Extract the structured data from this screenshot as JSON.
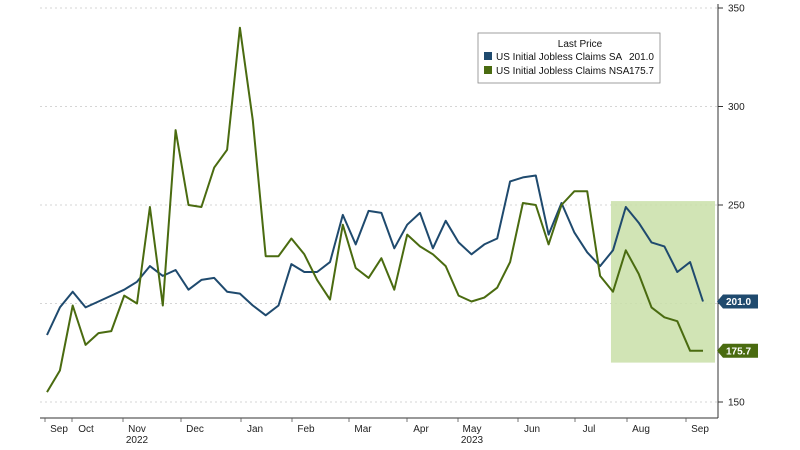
{
  "chart_data": {
    "type": "line",
    "xlabel": "",
    "ylabel": "",
    "ylim": [
      150,
      350
    ],
    "yticks": [
      150,
      200,
      250,
      300,
      350
    ],
    "grid": "horizontal dotted",
    "legend_position": "top-right",
    "legend_title": "Last Price",
    "months": [
      "Sep",
      "Oct",
      "Nov",
      "Dec",
      "Jan",
      "Feb",
      "Mar",
      "Apr",
      "May",
      "Jun",
      "Jul",
      "Aug",
      "Sep"
    ],
    "years": [
      {
        "label": "2022",
        "month_index": 2
      },
      {
        "label": "2023",
        "month_index": 8
      }
    ],
    "series": [
      {
        "name": "US Initial Jobless Claims SA",
        "last_value": "201.0",
        "color": "#1f4a6e",
        "values": [
          184,
          198,
          206,
          198,
          201,
          204,
          207,
          211,
          219,
          214,
          217,
          207,
          212,
          213,
          206,
          205,
          199,
          194,
          199,
          220,
          216,
          216,
          221,
          245,
          230,
          247,
          246,
          228,
          240,
          246,
          228,
          242,
          231,
          225,
          230,
          233,
          262,
          264,
          265,
          235,
          251,
          236,
          226,
          219,
          227,
          249,
          241,
          231,
          229,
          216,
          221,
          201
        ]
      },
      {
        "name": "US Initial Jobless Claims NSA",
        "last_value": "175.7",
        "color": "#4a6b10",
        "values": [
          155,
          166,
          199,
          179,
          185,
          186,
          204,
          200,
          249,
          199,
          288,
          250,
          249,
          269,
          278,
          340,
          293,
          224,
          224,
          233,
          225,
          212,
          202,
          240,
          218,
          213,
          223,
          207,
          235,
          229,
          225,
          219,
          204,
          201,
          203,
          208,
          221,
          251,
          250,
          230,
          250,
          257,
          257,
          214,
          206,
          227,
          215,
          198,
          193,
          191,
          176,
          176
        ]
      }
    ],
    "highlight": {
      "start_index": 44,
      "end_index": 52,
      "ymin": 170,
      "ymax": 252,
      "color": "#c9dfa8"
    }
  }
}
